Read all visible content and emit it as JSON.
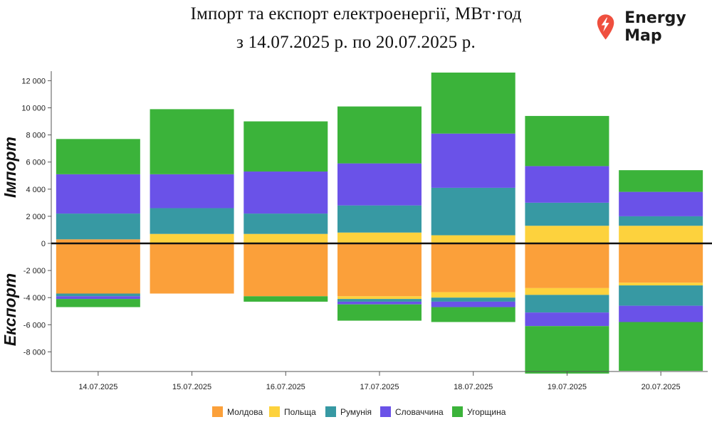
{
  "title_line1": "Імпорт та експорт електроенергії, МВт·год",
  "title_line2": "з 14.07.2025 р. по 20.07.2025 р.",
  "brand": {
    "name": "Energy Map",
    "icon": "lightning-pin-icon",
    "color": "#ef4f3e"
  },
  "chart_data": {
    "type": "bar",
    "stacked": true,
    "categories": [
      "14.07.2025",
      "15.07.2025",
      "16.07.2025",
      "17.07.2025",
      "18.07.2025",
      "19.07.2025",
      "20.07.2025"
    ],
    "ylim": [
      -9500,
      12500
    ],
    "yticks": [
      -8000,
      -6000,
      -4000,
      -2000,
      0,
      2000,
      4000,
      6000,
      8000,
      10000,
      12000
    ],
    "ytick_labels": [
      "-8 000",
      "-6 000",
      "-4 000",
      "-2 000",
      "0",
      "2 000",
      "4 000",
      "6 000",
      "8 000",
      "10 000",
      "12 000"
    ],
    "import_label": "Імпорт",
    "export_label": "Експорт",
    "legend_position": "bottom",
    "series": [
      {
        "name": "Молдова",
        "color": "#fba03a",
        "import": [
          300,
          0,
          0,
          0,
          0,
          0,
          0
        ],
        "export": [
          3700,
          3700,
          3900,
          3900,
          3600,
          3300,
          2900
        ]
      },
      {
        "name": "Польща",
        "color": "#fdd23d",
        "import": [
          0,
          700,
          700,
          800,
          600,
          1300,
          1300
        ],
        "export": [
          0,
          0,
          0,
          200,
          400,
          500,
          200
        ]
      },
      {
        "name": "Румунія",
        "color": "#3799a3",
        "import": [
          1900,
          1900,
          1500,
          2000,
          3500,
          1700,
          700
        ],
        "export": [
          200,
          0,
          0,
          200,
          300,
          1300,
          1500
        ]
      },
      {
        "name": "Словаччина",
        "color": "#6a52e8",
        "import": [
          2900,
          2500,
          3100,
          3100,
          4000,
          2700,
          1800
        ],
        "export": [
          200,
          0,
          0,
          200,
          400,
          1000,
          1200
        ]
      },
      {
        "name": "Угорщина",
        "color": "#3bb33a",
        "import": [
          2600,
          4800,
          3700,
          4200,
          4500,
          3700,
          1600
        ],
        "export": [
          600,
          0,
          400,
          1200,
          1100,
          3500,
          3600
        ]
      }
    ]
  }
}
